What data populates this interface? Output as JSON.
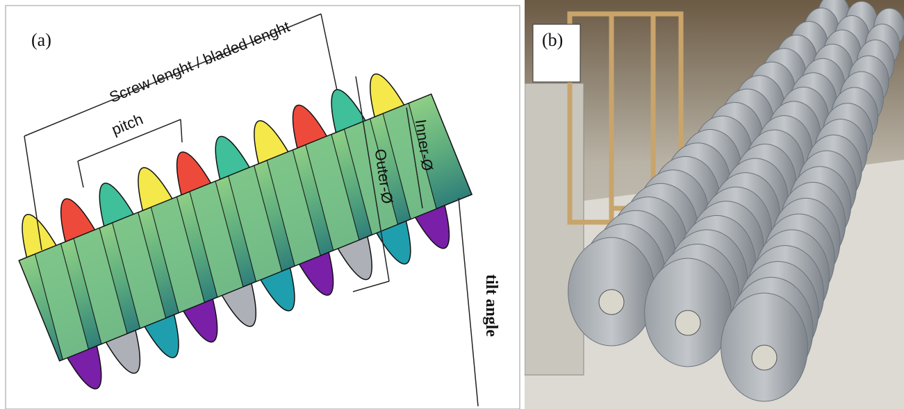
{
  "panels": [
    {
      "label": "(a)",
      "annotations": {
        "length": "Screw lenght / bladed lenght",
        "pitch": "pitch",
        "outer": "Outer-Ø",
        "inner": "Inner-Ø",
        "tilt": "tilt angle"
      }
    },
    {
      "label": "(b)"
    }
  ]
}
